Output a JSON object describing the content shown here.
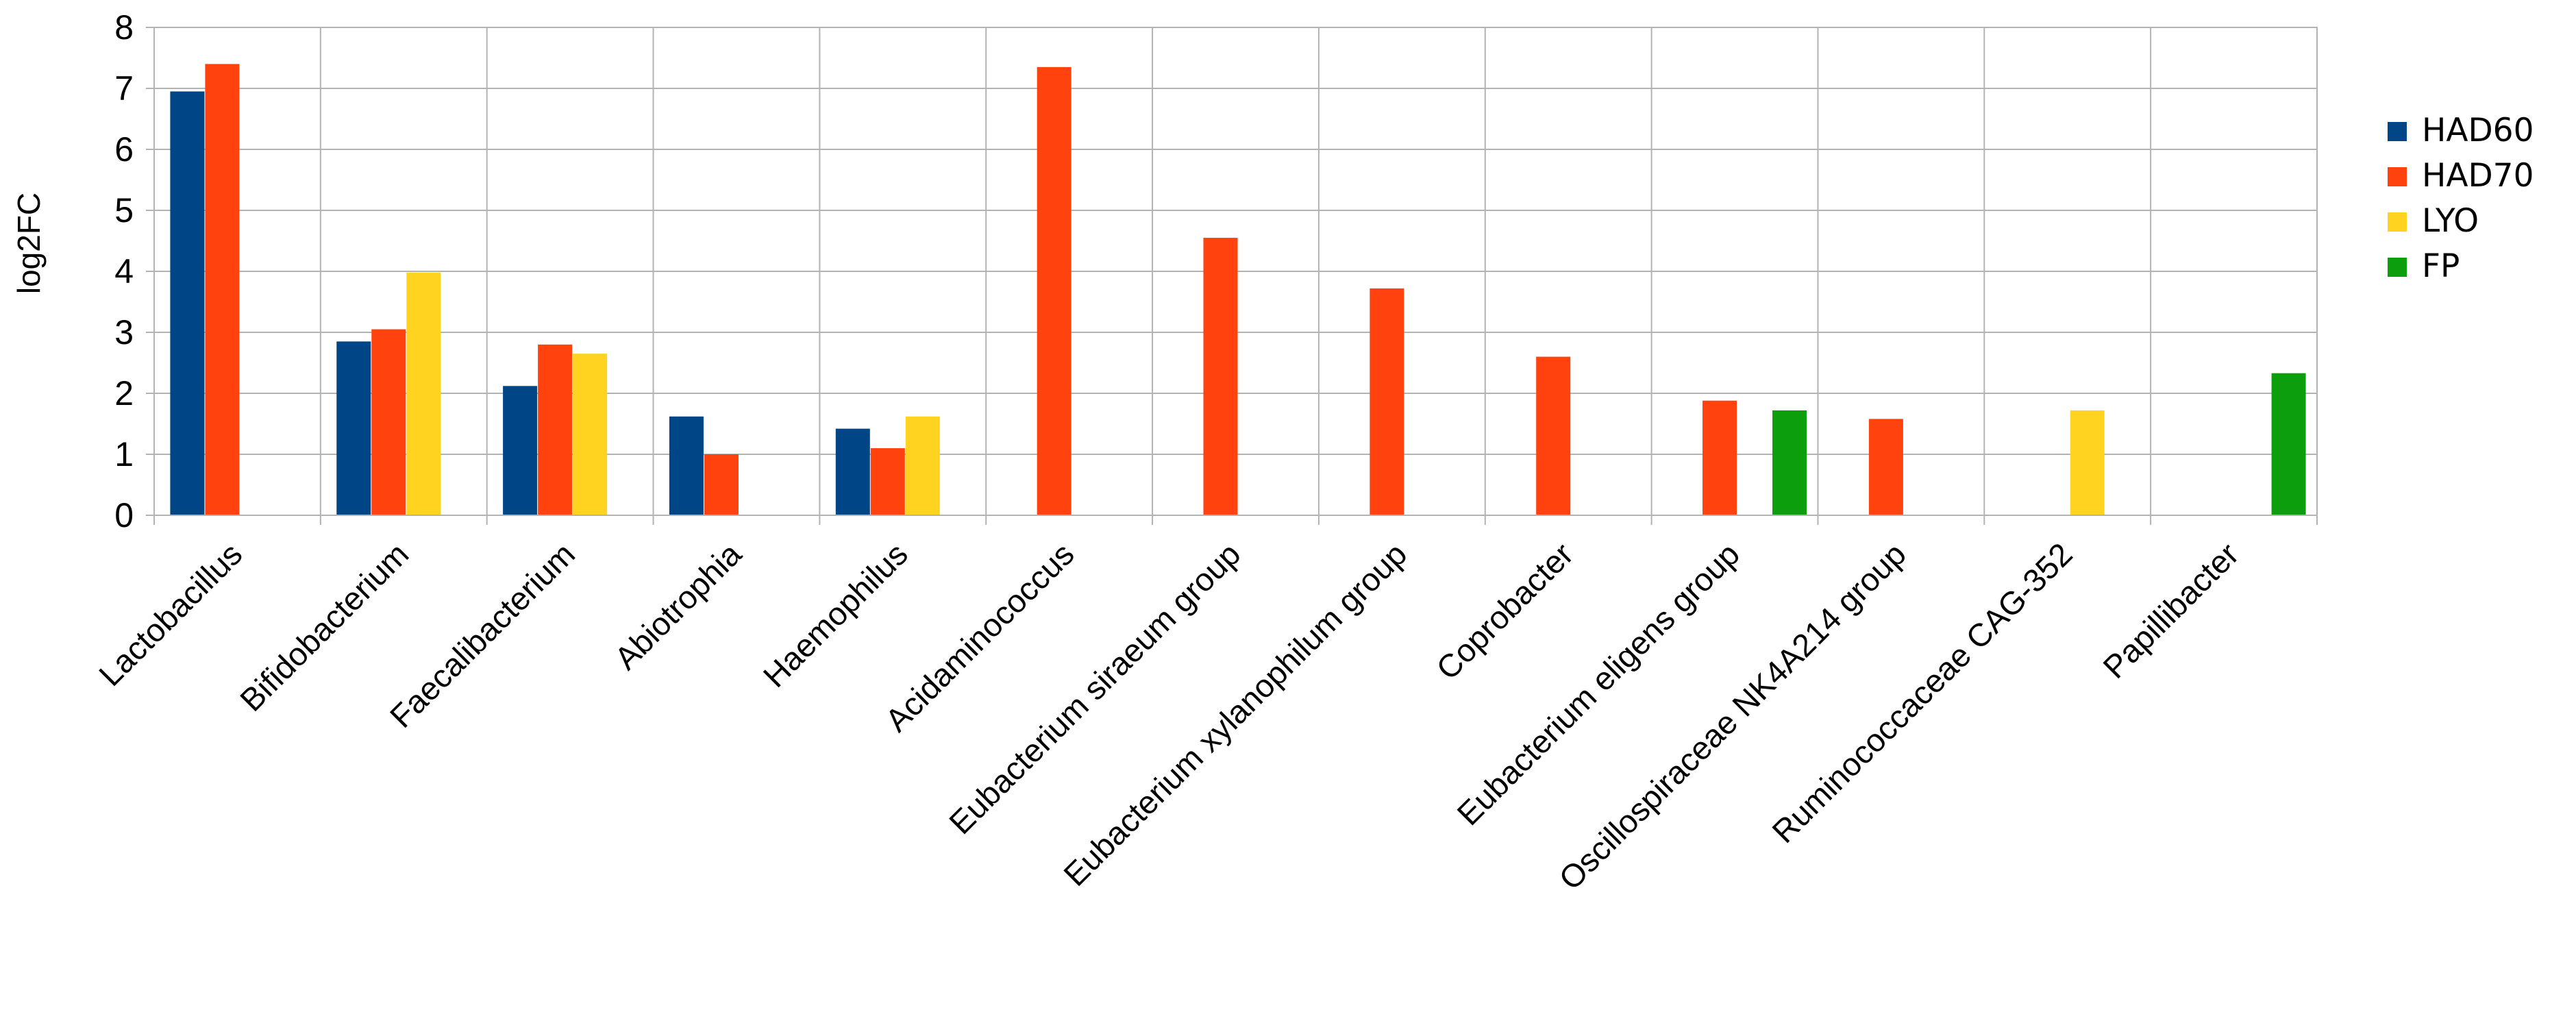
{
  "chart_data": {
    "type": "bar",
    "title": "",
    "xlabel": "",
    "ylabel": "log2FC",
    "ylim": [
      0,
      8
    ],
    "yticks": [
      "0",
      "1",
      "2",
      "3",
      "4",
      "5",
      "6",
      "7",
      "8"
    ],
    "grid": true,
    "legend_position": "right",
    "categories": [
      "Lactobacillus",
      "Bifidobacterium",
      "Faecalibacterium",
      "Abiotrophia",
      "Haemophilus",
      "Acidaminococcus",
      "Eubacterium siraeum group",
      "Eubacterium xylanophilum group",
      "Coprobacter",
      "Eubacterium eligens group",
      "Oscillospiraceae NK4A214 group",
      "Ruminococcaceae CAG-352",
      "Papillibacter"
    ],
    "series": [
      {
        "name": "HAD60",
        "color": "#004586",
        "values": [
          6.95,
          2.85,
          2.12,
          1.62,
          1.42,
          null,
          null,
          null,
          null,
          null,
          null,
          null,
          null
        ]
      },
      {
        "name": "HAD70",
        "color": "#ff420e",
        "values": [
          7.4,
          3.05,
          2.8,
          1.0,
          1.1,
          7.35,
          4.55,
          3.72,
          2.6,
          1.88,
          1.58,
          null,
          null
        ]
      },
      {
        "name": "LYO",
        "color": "#ffd320",
        "values": [
          null,
          3.98,
          2.65,
          null,
          1.62,
          null,
          null,
          null,
          null,
          null,
          null,
          1.72,
          null
        ]
      },
      {
        "name": "FP",
        "color": "#0d9e0d",
        "values": [
          null,
          null,
          null,
          null,
          null,
          null,
          null,
          null,
          null,
          1.72,
          null,
          null,
          2.33
        ]
      }
    ]
  }
}
